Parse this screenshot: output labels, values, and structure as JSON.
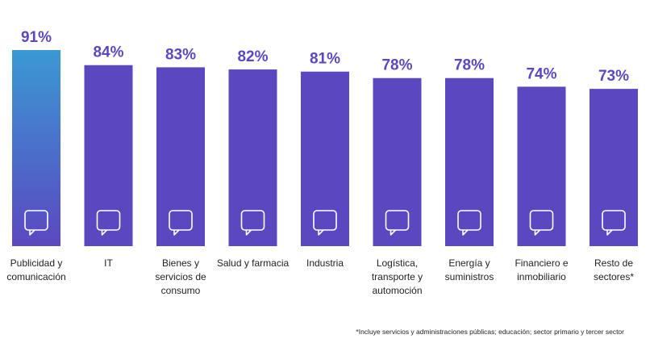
{
  "chart_data": {
    "type": "bar",
    "categories": [
      "Publicidad y comunicación",
      "IT",
      "Bienes y servicios de consumo",
      "Salud y farmacia",
      "Industria",
      "Logística, transporte y automoción",
      "Energía y suministros",
      "Financiero e inmobiliario",
      "Resto de sectores*"
    ],
    "values": [
      91,
      84,
      83,
      82,
      81,
      78,
      78,
      74,
      73
    ],
    "value_labels": [
      "91%",
      "84%",
      "83%",
      "82%",
      "81%",
      "78%",
      "78%",
      "74%",
      "73%"
    ],
    "color": "#5b48c0",
    "highlight_color": "#3b98d4",
    "ylim": [
      0,
      100
    ],
    "footnote": "*Incluye servicios y administraciones públicas; educación; sector primario y tercer sector"
  }
}
